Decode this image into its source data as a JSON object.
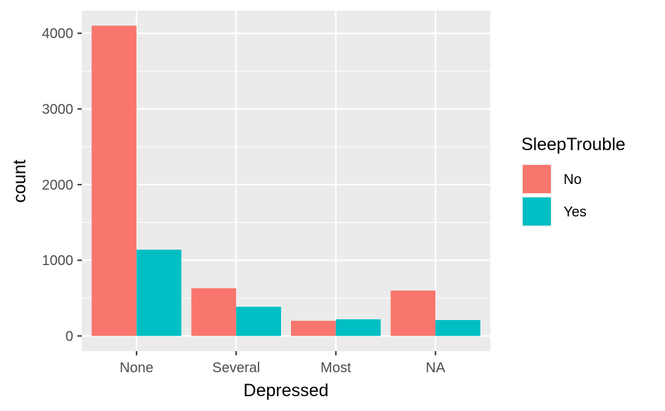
{
  "chart_data": {
    "type": "bar",
    "categories": [
      "None",
      "Several",
      "Most",
      "NA"
    ],
    "series": [
      {
        "name": "No",
        "color": "#F8766D",
        "values": [
          4100,
          630,
          200,
          600
        ]
      },
      {
        "name": "Yes",
        "color": "#00BFC4",
        "values": [
          1140,
          385,
          220,
          210
        ]
      }
    ],
    "xlabel": "Depressed",
    "ylabel": "count",
    "ylim": [
      -200,
      4300
    ],
    "yticks": [
      0,
      1000,
      2000,
      3000,
      4000
    ],
    "y_tick_labels": [
      "0",
      "1000",
      "2000",
      "3000",
      "4000"
    ],
    "legend_title": "SleepTrouble",
    "legend_position": "right",
    "grid": true,
    "panel_background": "#EBEBEB",
    "grid_color": "#FFFFFF"
  }
}
